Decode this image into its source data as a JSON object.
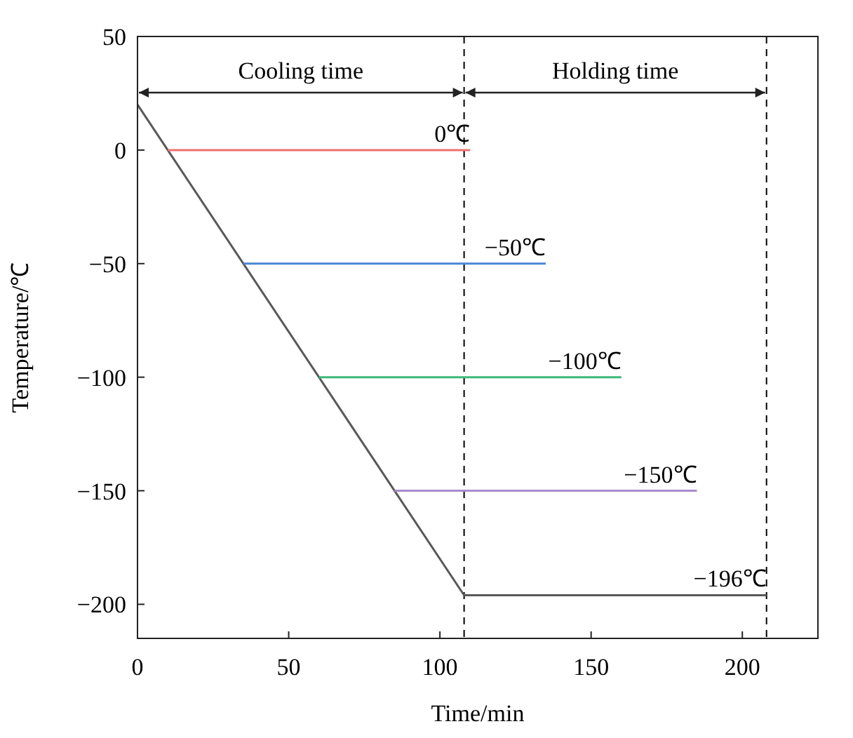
{
  "chart_data": {
    "type": "line",
    "xlabel": "Time/min",
    "ylabel": "Temperature/℃",
    "xlim": [
      0,
      225
    ],
    "ylim": [
      -215,
      50
    ],
    "xticks": [
      0,
      50,
      100,
      150,
      200
    ],
    "yticks": [
      50,
      0,
      {
        "value": -50,
        "label": "−50"
      },
      {
        "value": -100,
        "label": "−100"
      },
      {
        "value": -150,
        "label": "−150"
      },
      {
        "value": -200,
        "label": "−200"
      }
    ],
    "series": [
      {
        "name": "−196℃",
        "color": "#595959",
        "x": [
          0,
          108,
          208
        ],
        "values": [
          20,
          -196,
          -196
        ]
      },
      {
        "name": "0℃",
        "color": "#f07070",
        "x": [
          10,
          110
        ],
        "values": [
          0,
          0
        ]
      },
      {
        "name": "−50℃",
        "color": "#4a86d4",
        "x": [
          35,
          135
        ],
        "values": [
          -50,
          -50
        ]
      },
      {
        "name": "−100℃",
        "color": "#3cb878",
        "x": [
          60,
          160
        ],
        "values": [
          -100,
          -100
        ]
      },
      {
        "name": "−150℃",
        "color": "#a98bd0",
        "x": [
          85,
          185
        ],
        "values": [
          -150,
          -150
        ]
      }
    ],
    "ref_lines": [
      {
        "axis": "x",
        "value": 108,
        "line_style": "dashed",
        "color": "#000000"
      },
      {
        "axis": "x",
        "value": 208,
        "line_style": "dashed",
        "color": "#000000"
      }
    ],
    "annotations": [
      "Cooling time",
      "Holding time"
    ],
    "grid": false,
    "marker": "none",
    "line_style": "solid"
  }
}
